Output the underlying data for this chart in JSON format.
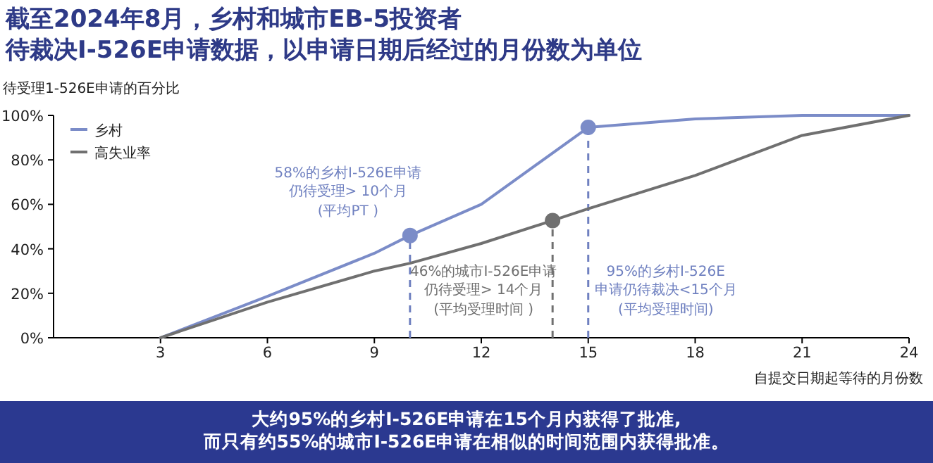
{
  "chart_data": {
    "type": "line",
    "title": "截至2024年8月，乡村和城市EB-5投资者待裁决I-526E申请数据，以申请日期后经过的月份数为单位",
    "ylabel": "待受理1-526E申请的百分比",
    "xlabel": "自提交日期起等待的月份数",
    "xlim": [
      0,
      24
    ],
    "xticks": [
      3,
      6,
      9,
      12,
      15,
      18,
      21,
      24
    ],
    "ylim": [
      0,
      100
    ],
    "yticks": [
      {
        "value": 0,
        "label": "0%"
      },
      {
        "value": 20,
        "label": "20%"
      },
      {
        "value": 40,
        "label": "40%"
      },
      {
        "value": 60,
        "label": "60%"
      },
      {
        "value": 80,
        "label": "80%"
      },
      {
        "value": 100,
        "label": "100%"
      }
    ],
    "legend": "top left",
    "marker": "none",
    "line_style": "solid",
    "grid": false,
    "series": [
      {
        "name": "乡村",
        "color": "#7b8cc8",
        "x": [
          3,
          6,
          9,
          10,
          12,
          15,
          18,
          21,
          24
        ],
        "values": [
          0,
          18.6,
          38,
          46,
          60,
          94.6,
          98.4,
          100,
          100
        ]
      },
      {
        "name": "高失业率",
        "color": "#707070",
        "x": [
          3,
          6,
          9,
          10,
          12,
          14,
          15,
          18,
          21,
          24
        ],
        "values": [
          0,
          16,
          30,
          33.5,
          42.4,
          52.7,
          58,
          73,
          91,
          100
        ]
      },
      {
        "type": "scatter",
        "marker": "circle",
        "color": "#7b8cc8",
        "x": [
          10,
          15
        ],
        "values": [
          46,
          94.6
        ]
      },
      {
        "type": "scatter",
        "marker": "circle",
        "color": "#707070",
        "x": [
          14
        ],
        "values": [
          52.7
        ]
      }
    ],
    "ref_lines": [
      {
        "axis": "x",
        "value": 10,
        "label": "58%的乡村I-526E申请仍待受理> 10个月\n(平均PT )",
        "color": "#6f80c0",
        "line_style": "dashed"
      },
      {
        "axis": "x",
        "value": 14,
        "label": "46%的城市I-526E申请仍待受理> 14个月\n(平均受理时间 )",
        "color": "#707070",
        "line_style": "dashed"
      },
      {
        "axis": "x",
        "value": 15,
        "label": "95%的乡村I-526E\n申请仍待裁决<15个月\n(平均受理时间)",
        "color": "#6f80c0",
        "line_style": "dashed"
      }
    ],
    "annotations": [
      "大约95%的乡村I-526E申请在15个月内获得了批准,\n而只有约55%的城市I-526E申请在相似的时间范围内获得批准。"
    ]
  }
}
